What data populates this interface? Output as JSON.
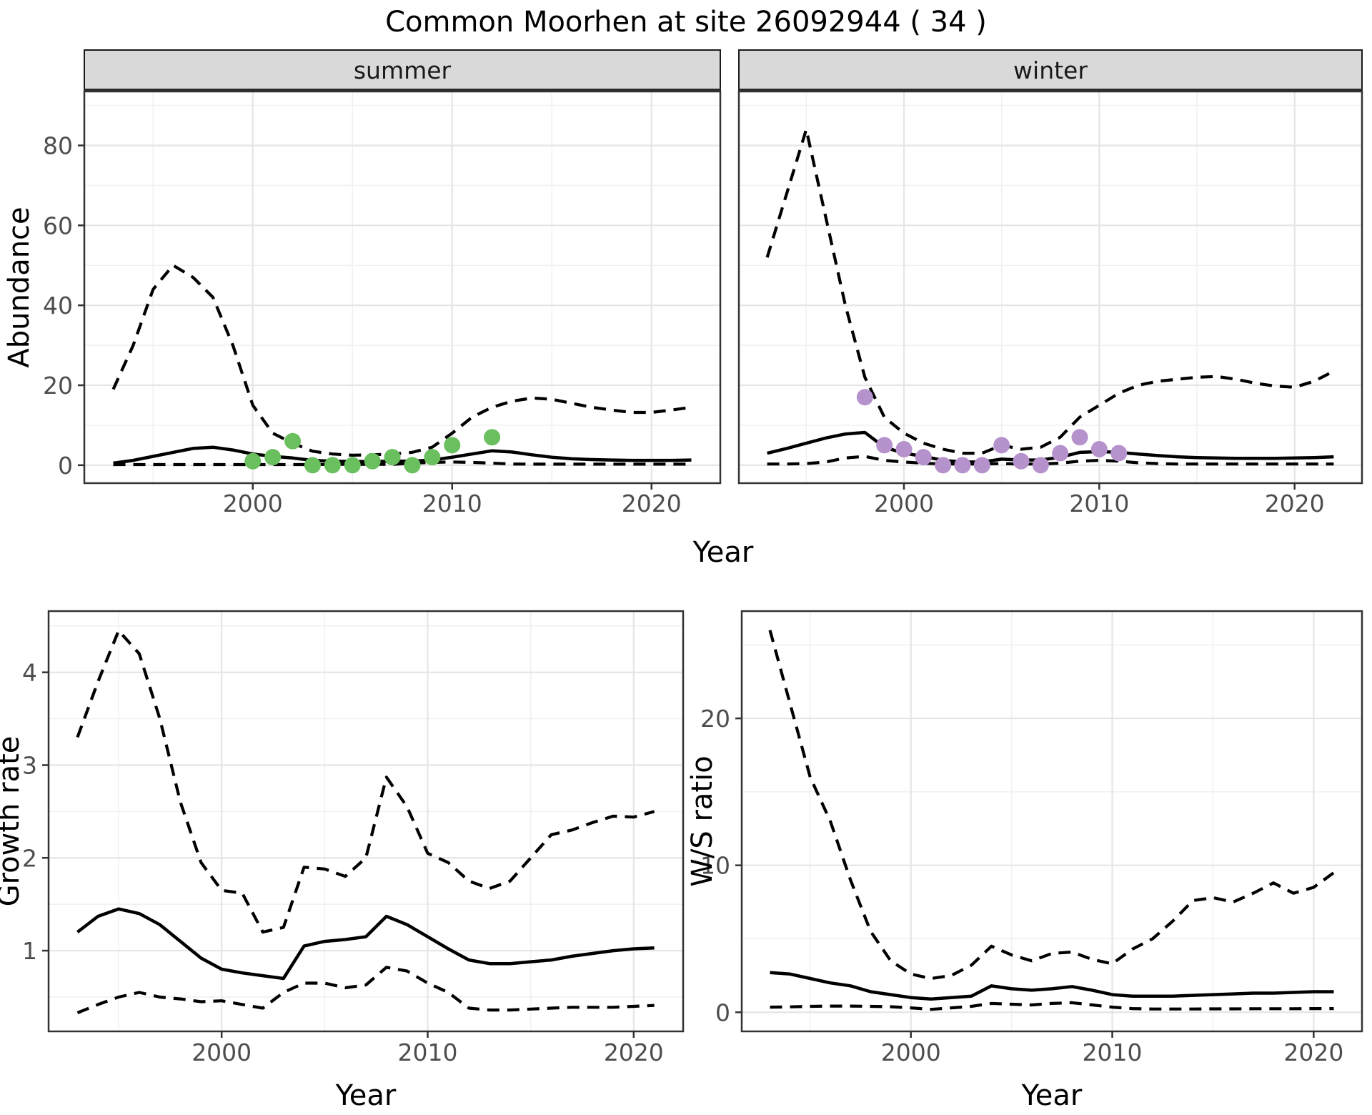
{
  "title": "Common Moorhen at site 26092944 ( 34 )",
  "colors": {
    "summer_points": "#6abf5e",
    "winter_points": "#b692cc",
    "line": "#000000",
    "strip_bg": "#d9d9d9",
    "strip_border": "#1a1a1a",
    "panel_border": "#333333",
    "grid_major": "#e5e5e5",
    "grid_minor": "#f1f1f1",
    "tick_label": "#4d4d4d",
    "axis_title": "#000000"
  },
  "shared_axis": {
    "top_xlabel": "Year",
    "top_ylabel": "Abundance"
  },
  "chart_data": [
    {
      "id": "abundance-summer",
      "type": "line",
      "facet_label": "summer",
      "ylabel": "Abundance",
      "xlabel": "Year",
      "x": [
        1993,
        1994,
        1995,
        1996,
        1997,
        1998,
        1999,
        2000,
        2001,
        2002,
        2003,
        2004,
        2005,
        2006,
        2007,
        2008,
        2009,
        2010,
        2011,
        2012,
        2013,
        2014,
        2015,
        2016,
        2017,
        2018,
        2019,
        2020,
        2021,
        2022
      ],
      "series": [
        {
          "name": "upper-ci",
          "style": "dashed",
          "values": [
            19,
            30,
            44,
            50,
            47,
            42,
            30,
            15,
            8,
            5.5,
            3.5,
            2.8,
            2.5,
            2.6,
            2.8,
            3.2,
            4.5,
            8,
            12,
            14.5,
            16,
            16.8,
            16.5,
            15.5,
            14.5,
            13.8,
            13.2,
            13.2,
            13.8,
            14.5
          ]
        },
        {
          "name": "median",
          "style": "solid",
          "values": [
            0.5,
            1.2,
            2.2,
            3.2,
            4.2,
            4.5,
            3.8,
            2.8,
            2.2,
            1.8,
            1.2,
            1.0,
            0.9,
            0.9,
            1.0,
            1.0,
            1.3,
            2.0,
            2.8,
            3.6,
            3.3,
            2.6,
            2.0,
            1.6,
            1.4,
            1.3,
            1.2,
            1.2,
            1.2,
            1.3
          ]
        },
        {
          "name": "lower-ci",
          "style": "dashed",
          "values": [
            0.15,
            0.15,
            0.15,
            0.15,
            0.15,
            0.15,
            0.15,
            0.15,
            0.15,
            0.15,
            0.15,
            0.2,
            0.2,
            0.2,
            0.2,
            0.5,
            0.7,
            0.8,
            0.7,
            0.5,
            0.3,
            0.25,
            0.25,
            0.25,
            0.25,
            0.25,
            0.25,
            0.25,
            0.25,
            0.25
          ]
        }
      ],
      "points": {
        "name": "observed-abundance",
        "color_key": "summer_points",
        "xy": [
          [
            2000,
            1
          ],
          [
            2001,
            2
          ],
          [
            2002,
            6
          ],
          [
            2003,
            0
          ],
          [
            2004,
            0
          ],
          [
            2005,
            0
          ],
          [
            2006,
            1
          ],
          [
            2007,
            2
          ],
          [
            2008,
            0
          ],
          [
            2009,
            2
          ],
          [
            2010,
            5
          ],
          [
            2012,
            7
          ]
        ]
      },
      "xlim": [
        1991.55,
        2023.45
      ],
      "ylim": [
        -4.5,
        93.5
      ],
      "xticks": [
        2000,
        2010,
        2020
      ],
      "xticks_minor": [
        1995,
        2005,
        2015
      ],
      "yticks": [
        0,
        20,
        40,
        60,
        80
      ],
      "yticks_minor": [
        10,
        30,
        50,
        70,
        90
      ],
      "ytick_labels": [
        "0",
        "20",
        "40",
        "60",
        "80"
      ],
      "xtick_labels": [
        "2000",
        "2010",
        "2020"
      ],
      "show_ytick_labels": true
    },
    {
      "id": "abundance-winter",
      "type": "line",
      "facet_label": "winter",
      "ylabel": "Abundance",
      "xlabel": "Year",
      "x": [
        1993,
        1994,
        1995,
        1996,
        1997,
        1998,
        1999,
        2000,
        2001,
        2002,
        2003,
        2004,
        2005,
        2006,
        2007,
        2008,
        2009,
        2010,
        2011,
        2012,
        2013,
        2014,
        2015,
        2016,
        2017,
        2018,
        2019,
        2020,
        2021,
        2022
      ],
      "series": [
        {
          "name": "upper-ci",
          "style": "dashed",
          "values": [
            52,
            68,
            84,
            62,
            40,
            22,
            12,
            8,
            5.5,
            4,
            3,
            3,
            5,
            4,
            4.5,
            7,
            12,
            15,
            18,
            20,
            21,
            21.5,
            22,
            22.2,
            21.5,
            20.5,
            19.8,
            19.5,
            21,
            23.5
          ]
        },
        {
          "name": "median",
          "style": "solid",
          "values": [
            3.0,
            4.2,
            5.5,
            6.8,
            7.8,
            8.2,
            4.5,
            3.0,
            2.2,
            1.2,
            0.8,
            0.8,
            1.5,
            1.3,
            1.3,
            2.0,
            3.2,
            3.4,
            3.2,
            2.8,
            2.4,
            2.1,
            1.9,
            1.8,
            1.7,
            1.7,
            1.7,
            1.8,
            1.9,
            2.1
          ]
        },
        {
          "name": "lower-ci",
          "style": "dashed",
          "values": [
            0.3,
            0.3,
            0.4,
            0.8,
            1.8,
            2.2,
            1.2,
            0.8,
            0.5,
            0.3,
            0.3,
            0.3,
            0.4,
            0.3,
            0.3,
            0.5,
            1.0,
            1.2,
            1.0,
            0.6,
            0.4,
            0.3,
            0.3,
            0.3,
            0.3,
            0.3,
            0.3,
            0.3,
            0.3,
            0.3
          ]
        }
      ],
      "points": {
        "name": "observed-abundance",
        "color_key": "winter_points",
        "xy": [
          [
            1998,
            17
          ],
          [
            1999,
            5
          ],
          [
            2000,
            4
          ],
          [
            2001,
            2
          ],
          [
            2002,
            0
          ],
          [
            2003,
            0
          ],
          [
            2004,
            0
          ],
          [
            2005,
            5
          ],
          [
            2006,
            1
          ],
          [
            2007,
            0
          ],
          [
            2008,
            3
          ],
          [
            2009,
            7
          ],
          [
            2010,
            4
          ],
          [
            2011,
            3
          ]
        ]
      },
      "xlim": [
        1991.55,
        2023.45
      ],
      "ylim": [
        -4.5,
        93.5
      ],
      "xticks": [
        2000,
        2010,
        2020
      ],
      "xticks_minor": [
        1995,
        2005,
        2015
      ],
      "yticks": [
        0,
        20,
        40,
        60,
        80
      ],
      "yticks_minor": [
        10,
        30,
        50,
        70,
        90
      ],
      "ytick_labels": [
        "0",
        "20",
        "40",
        "60",
        "80"
      ],
      "xtick_labels": [
        "2000",
        "2010",
        "2020"
      ],
      "show_ytick_labels": false
    },
    {
      "id": "growth-rate",
      "type": "line",
      "facet_label": null,
      "ylabel": "Growth rate",
      "xlabel": "Year",
      "x": [
        1993,
        1994,
        1995,
        1996,
        1997,
        1998,
        1999,
        2000,
        2001,
        2002,
        2003,
        2004,
        2005,
        2006,
        2007,
        2008,
        2009,
        2010,
        2011,
        2012,
        2013,
        2014,
        2015,
        2016,
        2017,
        2018,
        2019,
        2020,
        2021
      ],
      "series": [
        {
          "name": "upper-ci",
          "style": "dashed",
          "values": [
            3.3,
            3.9,
            4.45,
            4.2,
            3.5,
            2.6,
            1.95,
            1.65,
            1.62,
            1.2,
            1.25,
            1.9,
            1.88,
            1.8,
            2.0,
            2.87,
            2.55,
            2.05,
            1.95,
            1.75,
            1.67,
            1.75,
            2.0,
            2.25,
            2.3,
            2.38,
            2.45,
            2.44,
            2.5
          ]
        },
        {
          "name": "median",
          "style": "solid",
          "values": [
            1.2,
            1.37,
            1.45,
            1.4,
            1.28,
            1.1,
            0.92,
            0.8,
            0.76,
            0.73,
            0.7,
            1.05,
            1.1,
            1.12,
            1.15,
            1.37,
            1.28,
            1.15,
            1.02,
            0.9,
            0.86,
            0.86,
            0.88,
            0.9,
            0.94,
            0.97,
            1.0,
            1.02,
            1.03
          ]
        },
        {
          "name": "lower-ci",
          "style": "dashed",
          "values": [
            0.33,
            0.42,
            0.5,
            0.55,
            0.5,
            0.48,
            0.45,
            0.46,
            0.42,
            0.38,
            0.55,
            0.65,
            0.65,
            0.6,
            0.63,
            0.82,
            0.78,
            0.65,
            0.55,
            0.38,
            0.36,
            0.36,
            0.37,
            0.38,
            0.39,
            0.39,
            0.39,
            0.4,
            0.41
          ]
        }
      ],
      "points": null,
      "xlim": [
        1991.6,
        2022.4
      ],
      "ylim": [
        0.13,
        4.66
      ],
      "xticks": [
        2000,
        2010,
        2020
      ],
      "xticks_minor": [
        1995,
        2005,
        2015
      ],
      "yticks": [
        1,
        2,
        3,
        4
      ],
      "yticks_minor": [
        0.5,
        1.5,
        2.5,
        3.5,
        4.5
      ],
      "ytick_labels": [
        "1",
        "2",
        "3",
        "4"
      ],
      "xtick_labels": [
        "2000",
        "2010",
        "2020"
      ],
      "show_ytick_labels": true
    },
    {
      "id": "ws-ratio",
      "type": "line",
      "facet_label": null,
      "ylabel": "W/S ratio",
      "xlabel": "Year",
      "x": [
        1993,
        1994,
        1995,
        1996,
        1997,
        1998,
        1999,
        2000,
        2001,
        2002,
        2003,
        2004,
        2005,
        2006,
        2007,
        2008,
        2009,
        2010,
        2011,
        2012,
        2013,
        2014,
        2015,
        2016,
        2017,
        2018,
        2019,
        2020,
        2021
      ],
      "series": [
        {
          "name": "upper-ci",
          "style": "dashed",
          "values": [
            26,
            21,
            16,
            13,
            9,
            5.5,
            3.5,
            2.6,
            2.3,
            2.5,
            3.2,
            4.5,
            3.9,
            3.5,
            4.0,
            4.1,
            3.6,
            3.3,
            4.3,
            5.0,
            6.2,
            7.6,
            7.8,
            7.5,
            8.1,
            8.8,
            8.1,
            8.5,
            9.5
          ]
        },
        {
          "name": "median",
          "style": "solid",
          "values": [
            2.7,
            2.6,
            2.3,
            2.0,
            1.8,
            1.4,
            1.2,
            1.0,
            0.9,
            1.0,
            1.1,
            1.8,
            1.6,
            1.5,
            1.6,
            1.75,
            1.5,
            1.2,
            1.1,
            1.1,
            1.1,
            1.15,
            1.2,
            1.25,
            1.3,
            1.3,
            1.35,
            1.4,
            1.4
          ]
        },
        {
          "name": "lower-ci",
          "style": "dashed",
          "values": [
            0.35,
            0.37,
            0.4,
            0.42,
            0.42,
            0.4,
            0.38,
            0.3,
            0.2,
            0.3,
            0.4,
            0.6,
            0.55,
            0.5,
            0.6,
            0.65,
            0.5,
            0.35,
            0.25,
            0.22,
            0.22,
            0.22,
            0.23,
            0.23,
            0.24,
            0.24,
            0.24,
            0.25,
            0.25
          ]
        }
      ],
      "points": null,
      "xlim": [
        1991.6,
        2022.4
      ],
      "ylim": [
        -1.3,
        27.3
      ],
      "xticks": [
        2000,
        2010,
        2020
      ],
      "xticks_minor": [
        1995,
        2005,
        2015
      ],
      "yticks": [
        0,
        10,
        20
      ],
      "yticks_minor": [
        5,
        15,
        25
      ],
      "ytick_labels": [
        "0",
        "10",
        "20"
      ],
      "xtick_labels": [
        "2000",
        "2010",
        "2020"
      ],
      "show_ytick_labels": true
    }
  ]
}
